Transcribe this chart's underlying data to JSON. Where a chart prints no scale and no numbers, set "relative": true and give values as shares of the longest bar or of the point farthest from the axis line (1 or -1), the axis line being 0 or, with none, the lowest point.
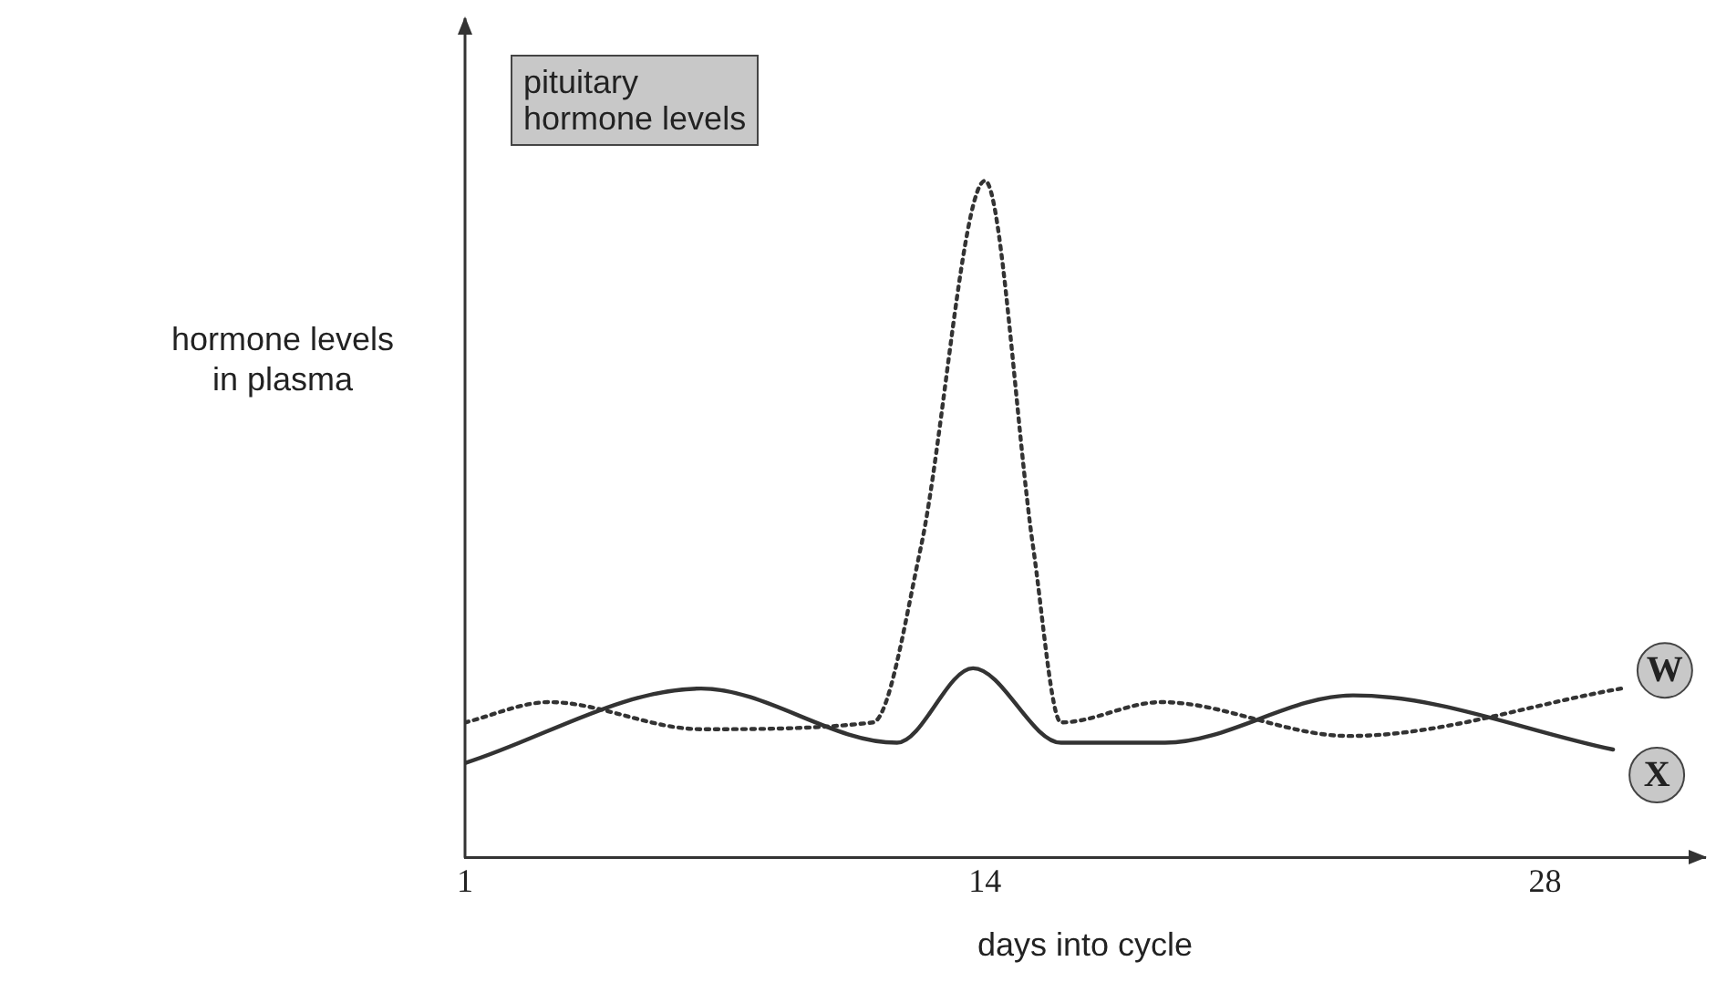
{
  "chart_data": {
    "type": "line",
    "relative": true,
    "xlabel": "days into cycle",
    "ylabel": "hormone levels\nin plasma",
    "annotations": [
      "pituitary\nhormone levels"
    ],
    "xlim": [
      1,
      32
    ],
    "xticks": [
      1,
      14,
      28
    ],
    "grid": false,
    "legend": false,
    "marker": "none",
    "series": [
      {
        "name": "W",
        "color": "#333333",
        "line_style": "dotted",
        "x": [
          1,
          3.1,
          6.9,
          11.2,
          12.4,
          14,
          15.2,
          15.9,
          18.4,
          23.1,
          29.9
        ],
        "values": [
          0.2,
          0.23,
          0.19,
          0.2,
          0.46,
          1,
          0.46,
          0.2,
          0.23,
          0.18,
          0.25
        ]
      },
      {
        "name": "X",
        "color": "#333333",
        "line_style": "solid",
        "x": [
          1,
          6.9,
          11.8,
          13.7,
          15.9,
          18.5,
          23.2,
          29.7
        ],
        "values": [
          0.14,
          0.25,
          0.17,
          0.28,
          0.17,
          0.17,
          0.24,
          0.16
        ]
      }
    ]
  }
}
